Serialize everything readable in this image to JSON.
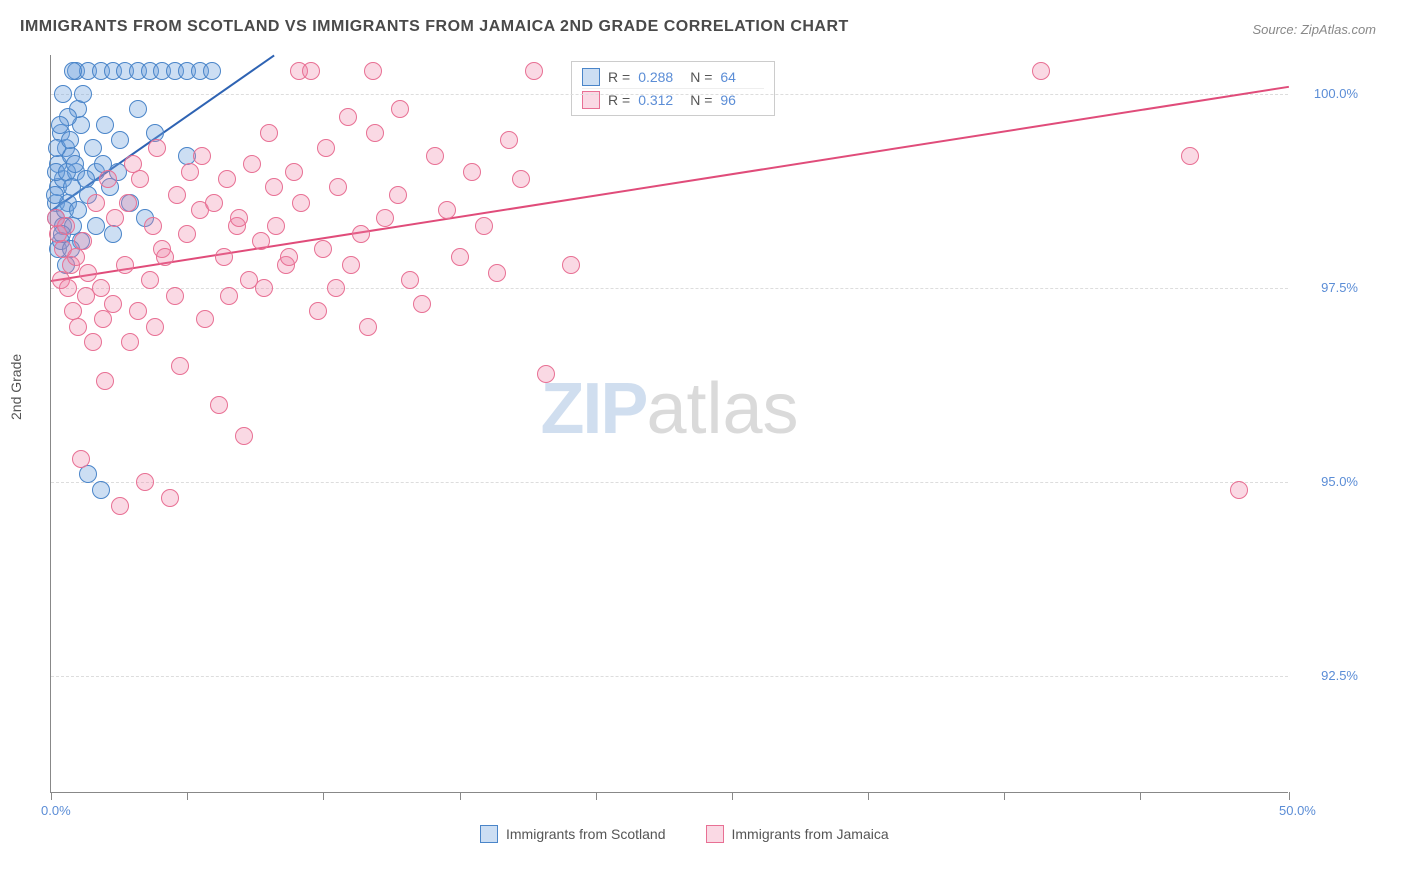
{
  "title": "IMMIGRANTS FROM SCOTLAND VS IMMIGRANTS FROM JAMAICA 2ND GRADE CORRELATION CHART",
  "source": "Source: ZipAtlas.com",
  "yaxis_label": "2nd Grade",
  "watermark": {
    "left": "ZIP",
    "right": "atlas"
  },
  "chart": {
    "type": "scatter",
    "xlim": [
      0,
      50
    ],
    "ylim": [
      91,
      100.5
    ],
    "xticks": [
      0,
      5.5,
      11,
      16.5,
      22,
      27.5,
      33,
      38.5,
      44,
      50
    ],
    "xtick_labels": {
      "0": "0.0%",
      "50": "50.0%"
    },
    "yticks": [
      92.5,
      95.0,
      97.5,
      100.0
    ],
    "ytick_labels": [
      "92.5%",
      "95.0%",
      "97.5%",
      "100.0%"
    ],
    "background_color": "#ffffff",
    "grid_color": "#dddddd",
    "marker_radius": 9,
    "marker_stroke_width": 1.4,
    "series": [
      {
        "name": "Immigrants from Scotland",
        "fill": "rgba(108,160,220,0.35)",
        "stroke": "#4a85c9",
        "r_value": "0.288",
        "n_value": "64",
        "trend": {
          "x1": 0,
          "y1": 98.5,
          "x2": 9,
          "y2": 100.5,
          "color": "#2e63b3",
          "width": 2
        },
        "points": [
          [
            0.2,
            98.6
          ],
          [
            0.3,
            98.8
          ],
          [
            0.5,
            98.9
          ],
          [
            0.3,
            99.1
          ],
          [
            0.6,
            99.3
          ],
          [
            0.4,
            99.5
          ],
          [
            0.8,
            99.2
          ],
          [
            0.2,
            98.4
          ],
          [
            0.5,
            98.3
          ],
          [
            0.7,
            98.6
          ],
          [
            1.0,
            99.0
          ],
          [
            1.2,
            99.6
          ],
          [
            1.0,
            100.3
          ],
          [
            1.5,
            100.3
          ],
          [
            2.0,
            100.3
          ],
          [
            2.5,
            100.3
          ],
          [
            3.0,
            100.3
          ],
          [
            3.5,
            100.3
          ],
          [
            4.0,
            100.3
          ],
          [
            4.5,
            100.3
          ],
          [
            5.0,
            100.3
          ],
          [
            5.5,
            100.3
          ],
          [
            6.0,
            100.3
          ],
          [
            6.5,
            100.3
          ],
          [
            2.2,
            99.6
          ],
          [
            2.8,
            99.4
          ],
          [
            1.8,
            99.0
          ],
          [
            1.5,
            98.7
          ],
          [
            0.9,
            98.3
          ],
          [
            0.3,
            98.0
          ],
          [
            0.6,
            97.8
          ],
          [
            1.2,
            98.1
          ],
          [
            1.8,
            98.3
          ],
          [
            2.5,
            98.2
          ],
          [
            3.2,
            98.6
          ],
          [
            5.5,
            99.2
          ],
          [
            0.4,
            98.1
          ],
          [
            0.8,
            98.0
          ],
          [
            1.5,
            95.1
          ],
          [
            2.0,
            94.9
          ],
          [
            3.5,
            99.8
          ],
          [
            4.2,
            99.5
          ],
          [
            1.1,
            99.8
          ],
          [
            1.3,
            100.0
          ],
          [
            0.7,
            99.7
          ],
          [
            0.5,
            100.0
          ],
          [
            0.9,
            100.3
          ],
          [
            0.2,
            99.0
          ],
          [
            0.15,
            98.7
          ],
          [
            0.25,
            99.3
          ],
          [
            0.35,
            99.6
          ],
          [
            0.45,
            98.2
          ],
          [
            0.55,
            98.5
          ],
          [
            0.65,
            99.0
          ],
          [
            0.75,
            99.4
          ],
          [
            0.85,
            98.8
          ],
          [
            0.95,
            99.1
          ],
          [
            1.1,
            98.5
          ],
          [
            1.4,
            98.9
          ],
          [
            1.7,
            99.3
          ],
          [
            2.1,
            99.1
          ],
          [
            2.4,
            98.8
          ],
          [
            2.7,
            99.0
          ],
          [
            3.8,
            98.4
          ]
        ]
      },
      {
        "name": "Immigrants from Jamaica",
        "fill": "rgba(240,130,165,0.30)",
        "stroke": "#e87094",
        "r_value": "0.312",
        "n_value": "96",
        "trend": {
          "x1": 0,
          "y1": 97.6,
          "x2": 50,
          "y2": 100.1,
          "color": "#e04c7a",
          "width": 2
        },
        "points": [
          [
            0.3,
            98.2
          ],
          [
            0.5,
            98.0
          ],
          [
            0.8,
            97.8
          ],
          [
            0.4,
            97.6
          ],
          [
            0.7,
            97.5
          ],
          [
            1.0,
            97.9
          ],
          [
            1.3,
            98.1
          ],
          [
            0.2,
            98.4
          ],
          [
            0.6,
            98.3
          ],
          [
            1.5,
            97.7
          ],
          [
            2.0,
            97.5
          ],
          [
            2.5,
            97.3
          ],
          [
            3.0,
            97.8
          ],
          [
            3.5,
            97.2
          ],
          [
            4.0,
            97.6
          ],
          [
            4.5,
            98.0
          ],
          [
            5.0,
            97.4
          ],
          [
            5.5,
            98.2
          ],
          [
            6.0,
            98.5
          ],
          [
            7.0,
            97.9
          ],
          [
            7.5,
            98.3
          ],
          [
            8.0,
            97.6
          ],
          [
            9.0,
            98.8
          ],
          [
            10.0,
            100.3
          ],
          [
            10.5,
            100.3
          ],
          [
            11.0,
            98.0
          ],
          [
            12.0,
            99.7
          ],
          [
            13.0,
            100.3
          ],
          [
            12.5,
            98.2
          ],
          [
            11.5,
            97.5
          ],
          [
            14.0,
            98.7
          ],
          [
            15.0,
            97.3
          ],
          [
            16.0,
            98.5
          ],
          [
            17.0,
            99.0
          ],
          [
            18.0,
            97.7
          ],
          [
            19.0,
            98.9
          ],
          [
            19.5,
            100.3
          ],
          [
            20.0,
            96.4
          ],
          [
            21.0,
            97.8
          ],
          [
            3.2,
            96.8
          ],
          [
            4.2,
            97.0
          ],
          [
            5.2,
            96.5
          ],
          [
            6.2,
            97.1
          ],
          [
            6.8,
            96.0
          ],
          [
            7.2,
            97.4
          ],
          [
            7.8,
            95.6
          ],
          [
            2.2,
            96.3
          ],
          [
            3.8,
            95.0
          ],
          [
            4.8,
            94.8
          ],
          [
            2.8,
            94.7
          ],
          [
            8.5,
            98.1
          ],
          [
            9.5,
            97.8
          ],
          [
            10.8,
            97.2
          ],
          [
            12.8,
            97.0
          ],
          [
            13.5,
            98.4
          ],
          [
            14.5,
            97.6
          ],
          [
            15.5,
            99.2
          ],
          [
            17.5,
            98.3
          ],
          [
            8.8,
            99.5
          ],
          [
            9.8,
            99.0
          ],
          [
            40.0,
            100.3
          ],
          [
            46.0,
            99.2
          ],
          [
            48.0,
            94.9
          ],
          [
            1.8,
            98.6
          ],
          [
            2.3,
            98.9
          ],
          [
            3.3,
            99.1
          ],
          [
            4.3,
            99.3
          ],
          [
            0.9,
            97.2
          ],
          [
            1.1,
            97.0
          ],
          [
            1.4,
            97.4
          ],
          [
            1.7,
            96.8
          ],
          [
            2.1,
            97.1
          ],
          [
            2.6,
            98.4
          ],
          [
            3.1,
            98.6
          ],
          [
            3.6,
            98.9
          ],
          [
            4.1,
            98.3
          ],
          [
            4.6,
            97.9
          ],
          [
            5.1,
            98.7
          ],
          [
            5.6,
            99.0
          ],
          [
            6.1,
            99.2
          ],
          [
            6.6,
            98.6
          ],
          [
            7.1,
            98.9
          ],
          [
            7.6,
            98.4
          ],
          [
            8.1,
            99.1
          ],
          [
            8.6,
            97.5
          ],
          [
            9.1,
            98.3
          ],
          [
            9.6,
            97.9
          ],
          [
            10.1,
            98.6
          ],
          [
            11.1,
            99.3
          ],
          [
            11.6,
            98.8
          ],
          [
            12.1,
            97.8
          ],
          [
            13.1,
            99.5
          ],
          [
            14.1,
            99.8
          ],
          [
            16.5,
            97.9
          ],
          [
            18.5,
            99.4
          ],
          [
            1.2,
            95.3
          ]
        ]
      }
    ]
  },
  "stats_labels": {
    "r": "R =",
    "n": "N ="
  },
  "legend_labels": [
    "Immigrants from Scotland",
    "Immigrants from Jamaica"
  ]
}
